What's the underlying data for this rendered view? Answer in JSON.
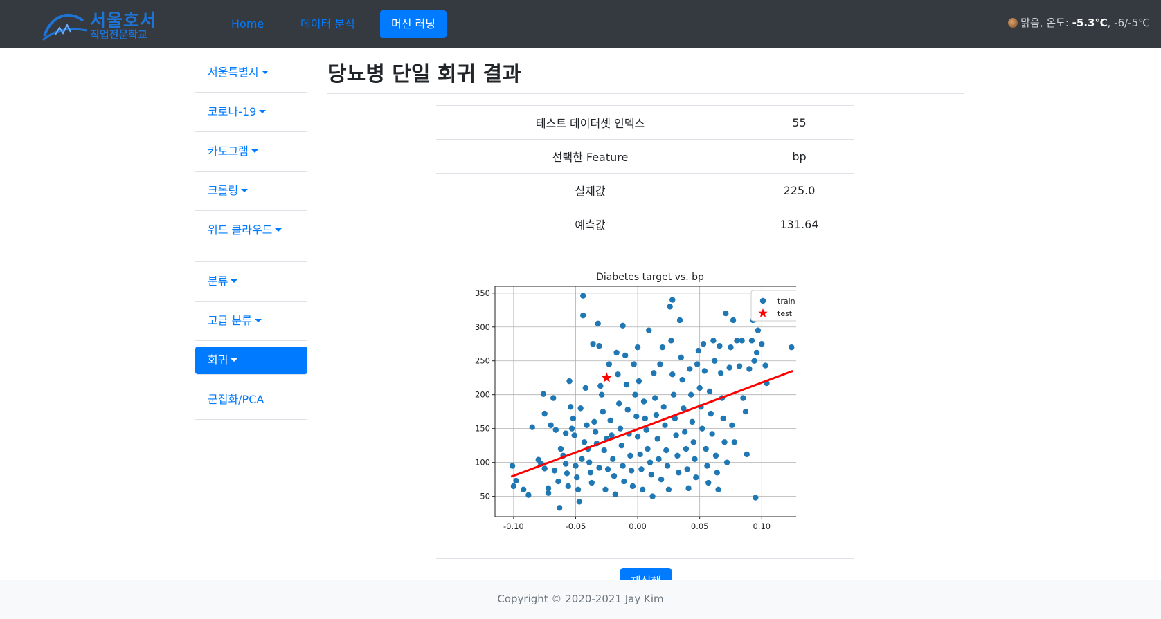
{
  "brand": {
    "line1": "서울호서",
    "line2": "직업전문학교"
  },
  "nav": {
    "items": [
      "Home",
      "데이터 분석",
      "머신 러닝"
    ],
    "active_index": 2
  },
  "weather": {
    "condition": "맑음, 온도: ",
    "temp": "-5.3℃",
    "range": ", -6/-5℃"
  },
  "sidebar": {
    "items": [
      "서울특별시",
      "코로나-19",
      "카토그램",
      "크롤링",
      "워드 클라우드",
      "분류",
      "고급 분류",
      "회귀",
      "군집화/PCA"
    ],
    "active_index": 7
  },
  "main": {
    "title": "당뇨병 단일 회귀 결과",
    "rows": [
      {
        "key": "테스트 데이터셋 인덱스",
        "value": "55"
      },
      {
        "key": "선택한 Feature",
        "value": "bp"
      },
      {
        "key": "실제값",
        "value": "225.0"
      },
      {
        "key": "예측값",
        "value": "131.64"
      }
    ],
    "rerun_label": "재실행"
  },
  "footer": {
    "text": "Copyright © 2020-2021 Jay Kim"
  },
  "colors": {
    "navbar": "#343a40",
    "accent": "#007bff",
    "train": "#1f77b4",
    "test": "#ff0000",
    "regression": "#ff0000"
  },
  "chart_data": {
    "type": "scatter",
    "title": "Diabetes target vs. bp",
    "xlabel": "",
    "ylabel": "",
    "xlim": [
      -0.115,
      0.135
    ],
    "ylim": [
      20,
      360
    ],
    "xticks": [
      -0.1,
      -0.05,
      0.0,
      0.05,
      0.1
    ],
    "xtick_labels": [
      "-0.10",
      "-0.05",
      "0.00",
      "0.05",
      "0.10"
    ],
    "yticks": [
      50,
      100,
      150,
      200,
      250,
      300,
      350
    ],
    "grid": true,
    "legend": {
      "position": "top-right",
      "entries": [
        "train",
        "test"
      ]
    },
    "series": [
      {
        "name": "train",
        "marker": "circle",
        "points": [
          [
            -0.101,
            95
          ],
          [
            -0.1,
            65
          ],
          [
            -0.098,
            73
          ],
          [
            -0.092,
            60
          ],
          [
            -0.088,
            52
          ],
          [
            -0.085,
            152
          ],
          [
            -0.08,
            104
          ],
          [
            -0.078,
            98
          ],
          [
            -0.076,
            201
          ],
          [
            -0.075,
            172
          ],
          [
            -0.075,
            91
          ],
          [
            -0.072,
            55
          ],
          [
            -0.072,
            62
          ],
          [
            -0.07,
            155
          ],
          [
            -0.068,
            195
          ],
          [
            -0.067,
            88
          ],
          [
            -0.066,
            148
          ],
          [
            -0.064,
            72
          ],
          [
            -0.063,
            33
          ],
          [
            -0.062,
            120
          ],
          [
            -0.06,
            110
          ],
          [
            -0.058,
            143
          ],
          [
            -0.058,
            98
          ],
          [
            -0.057,
            84
          ],
          [
            -0.056,
            65
          ],
          [
            -0.055,
            220
          ],
          [
            -0.054,
            182
          ],
          [
            -0.053,
            150
          ],
          [
            -0.052,
            165
          ],
          [
            -0.051,
            140
          ],
          [
            -0.05,
            95
          ],
          [
            -0.049,
            78
          ],
          [
            -0.048,
            60
          ],
          [
            -0.047,
            42
          ],
          [
            -0.046,
            180
          ],
          [
            -0.045,
            105
          ],
          [
            -0.044,
            346
          ],
          [
            -0.044,
            317
          ],
          [
            -0.043,
            130
          ],
          [
            -0.042,
            210
          ],
          [
            -0.041,
            155
          ],
          [
            -0.04,
            120
          ],
          [
            -0.039,
            100
          ],
          [
            -0.038,
            85
          ],
          [
            -0.037,
            70
          ],
          [
            -0.036,
            275
          ],
          [
            -0.035,
            160
          ],
          [
            -0.034,
            145
          ],
          [
            -0.033,
            128
          ],
          [
            -0.032,
            305
          ],
          [
            -0.031,
            272
          ],
          [
            -0.031,
            92
          ],
          [
            -0.03,
            213
          ],
          [
            -0.029,
            200
          ],
          [
            -0.028,
            175
          ],
          [
            -0.027,
            118
          ],
          [
            -0.026,
            60
          ],
          [
            -0.025,
            135
          ],
          [
            -0.024,
            90
          ],
          [
            -0.023,
            245
          ],
          [
            -0.022,
            162
          ],
          [
            -0.021,
            140
          ],
          [
            -0.02,
            105
          ],
          [
            -0.019,
            80
          ],
          [
            -0.018,
            53
          ],
          [
            -0.017,
            262
          ],
          [
            -0.016,
            230
          ],
          [
            -0.015,
            187
          ],
          [
            -0.014,
            150
          ],
          [
            -0.013,
            125
          ],
          [
            -0.012,
            302
          ],
          [
            -0.012,
            95
          ],
          [
            -0.011,
            72
          ],
          [
            -0.01,
            258
          ],
          [
            -0.009,
            215
          ],
          [
            -0.008,
            178
          ],
          [
            -0.007,
            142
          ],
          [
            -0.006,
            110
          ],
          [
            -0.005,
            88
          ],
          [
            -0.004,
            65
          ],
          [
            -0.003,
            245
          ],
          [
            -0.002,
            200
          ],
          [
            -0.001,
            168
          ],
          [
            0.0,
            270
          ],
          [
            0.0,
            138
          ],
          [
            0.001,
            220
          ],
          [
            0.002,
            112
          ],
          [
            0.003,
            90
          ],
          [
            0.004,
            60
          ],
          [
            0.005,
            190
          ],
          [
            0.006,
            165
          ],
          [
            0.007,
            148
          ],
          [
            0.008,
            120
          ],
          [
            0.009,
            295
          ],
          [
            0.01,
            100
          ],
          [
            0.011,
            82
          ],
          [
            0.012,
            50
          ],
          [
            0.013,
            232
          ],
          [
            0.014,
            195
          ],
          [
            0.015,
            170
          ],
          [
            0.016,
            135
          ],
          [
            0.017,
            105
          ],
          [
            0.018,
            245
          ],
          [
            0.019,
            75
          ],
          [
            0.02,
            270
          ],
          [
            0.021,
            182
          ],
          [
            0.022,
            155
          ],
          [
            0.023,
            118
          ],
          [
            0.024,
            95
          ],
          [
            0.025,
            60
          ],
          [
            0.026,
            330
          ],
          [
            0.027,
            280
          ],
          [
            0.028,
            340
          ],
          [
            0.028,
            230
          ],
          [
            0.029,
            200
          ],
          [
            0.03,
            165
          ],
          [
            0.031,
            140
          ],
          [
            0.032,
            110
          ],
          [
            0.033,
            85
          ],
          [
            0.034,
            310
          ],
          [
            0.035,
            255
          ],
          [
            0.036,
            222
          ],
          [
            0.037,
            180
          ],
          [
            0.038,
            145
          ],
          [
            0.039,
            120
          ],
          [
            0.04,
            90
          ],
          [
            0.041,
            62
          ],
          [
            0.042,
            238
          ],
          [
            0.043,
            200
          ],
          [
            0.044,
            160
          ],
          [
            0.045,
            130
          ],
          [
            0.046,
            105
          ],
          [
            0.047,
            78
          ],
          [
            0.048,
            245
          ],
          [
            0.049,
            265
          ],
          [
            0.05,
            210
          ],
          [
            0.051,
            182
          ],
          [
            0.052,
            150
          ],
          [
            0.053,
            275
          ],
          [
            0.054,
            235
          ],
          [
            0.055,
            120
          ],
          [
            0.056,
            95
          ],
          [
            0.057,
            70
          ],
          [
            0.058,
            205
          ],
          [
            0.059,
            172
          ],
          [
            0.06,
            142
          ],
          [
            0.061,
            280
          ],
          [
            0.062,
            250
          ],
          [
            0.063,
            110
          ],
          [
            0.064,
            85
          ],
          [
            0.065,
            60
          ],
          [
            0.066,
            272
          ],
          [
            0.067,
            232
          ],
          [
            0.068,
            195
          ],
          [
            0.069,
            165
          ],
          [
            0.07,
            130
          ],
          [
            0.071,
            320
          ],
          [
            0.072,
            100
          ],
          [
            0.074,
            240
          ],
          [
            0.075,
            270
          ],
          [
            0.076,
            155
          ],
          [
            0.077,
            310
          ],
          [
            0.078,
            130
          ],
          [
            0.08,
            280
          ],
          [
            0.082,
            242
          ],
          [
            0.084,
            280
          ],
          [
            0.085,
            195
          ],
          [
            0.087,
            175
          ],
          [
            0.088,
            112
          ],
          [
            0.09,
            238
          ],
          [
            0.092,
            280
          ],
          [
            0.093,
            310
          ],
          [
            0.094,
            250
          ],
          [
            0.095,
            48
          ],
          [
            0.096,
            262
          ],
          [
            0.097,
            295
          ],
          [
            0.1,
            275
          ],
          [
            0.103,
            243
          ],
          [
            0.104,
            217
          ],
          [
            0.124,
            270
          ]
        ]
      },
      {
        "name": "test",
        "marker": "star",
        "points": [
          [
            -0.025,
            225
          ]
        ]
      }
    ],
    "lines": [
      {
        "series": "regression",
        "x": [
          -0.102,
          0.125
        ],
        "y": [
          79,
          235
        ]
      }
    ]
  }
}
